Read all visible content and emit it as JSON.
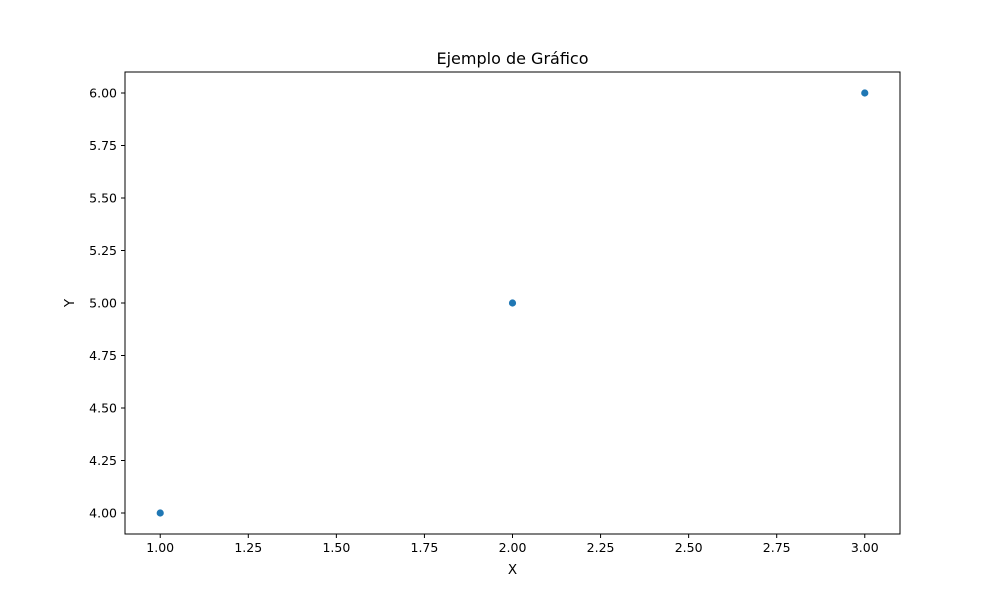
{
  "chart_data": {
    "type": "scatter",
    "title": "Ejemplo de Gráfico",
    "xlabel": "X",
    "ylabel": "Y",
    "x": [
      1,
      2,
      3
    ],
    "y": [
      4,
      5,
      6
    ],
    "xlim": [
      0.9,
      3.1
    ],
    "ylim": [
      3.9,
      6.1
    ],
    "xticks": [
      1.0,
      1.25,
      1.5,
      1.75,
      2.0,
      2.25,
      2.5,
      2.75,
      3.0
    ],
    "xtick_labels": [
      "1.00",
      "1.25",
      "1.50",
      "1.75",
      "2.00",
      "2.25",
      "2.50",
      "2.75",
      "3.00"
    ],
    "yticks": [
      4.0,
      4.25,
      4.5,
      4.75,
      5.0,
      5.25,
      5.5,
      5.75,
      6.0
    ],
    "ytick_labels": [
      "4.00",
      "4.25",
      "4.50",
      "4.75",
      "5.00",
      "5.25",
      "5.50",
      "5.75",
      "6.00"
    ],
    "grid": false,
    "legend": "none",
    "marker_color": "#1f77b4"
  }
}
